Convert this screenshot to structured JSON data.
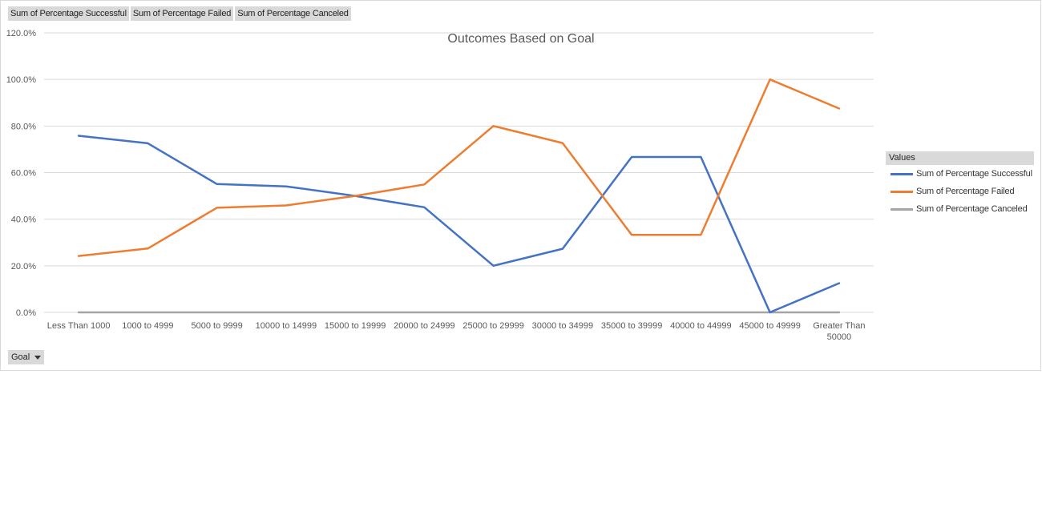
{
  "field_buttons": [
    {
      "label": "Sum of Percentage Successful"
    },
    {
      "label": "Sum of Percentage Failed"
    },
    {
      "label": "Sum of Percentage Canceled"
    }
  ],
  "axis_button": {
    "label": "Goal"
  },
  "legend": {
    "title": "Values"
  },
  "colors": {
    "successful": "#4472c4",
    "failed": "#ed7d31",
    "canceled": "#a5a5a5",
    "grid": "#d9d9d9",
    "text": "#595959"
  },
  "chart_data": {
    "type": "line",
    "title": "Outcomes Based on Goal",
    "xlabel": "",
    "ylabel": "",
    "ylim": [
      0,
      120
    ],
    "yticks": [
      "0.0%",
      "20.0%",
      "40.0%",
      "60.0%",
      "80.0%",
      "100.0%",
      "120.0%"
    ],
    "grid": true,
    "legend_position": "right",
    "categories": [
      "Less Than 1000",
      "1000 to 4999",
      "5000 to 9999",
      "10000 to 14999",
      "15000 to 19999",
      "20000 to 24999",
      "25000 to 29999",
      "30000 to 34999",
      "35000 to 39999",
      "40000 to 44999",
      "45000 to 49999",
      "Greater Than 50000"
    ],
    "series": [
      {
        "name": "Sum of Percentage Successful",
        "color": "#4472c4",
        "values": [
          75.8,
          72.6,
          55.1,
          54.1,
          50.0,
          45.1,
          20.0,
          27.3,
          66.7,
          66.7,
          0.0,
          12.5
        ]
      },
      {
        "name": "Sum of Percentage Failed",
        "color": "#ed7d31",
        "values": [
          24.2,
          27.4,
          44.9,
          45.9,
          50.0,
          54.9,
          80.0,
          72.7,
          33.3,
          33.3,
          100.0,
          87.5
        ]
      },
      {
        "name": "Sum of Percentage Canceled",
        "color": "#a5a5a5",
        "values": [
          0,
          0,
          0,
          0,
          0,
          0,
          0,
          0,
          0,
          0,
          0,
          0
        ]
      }
    ]
  }
}
